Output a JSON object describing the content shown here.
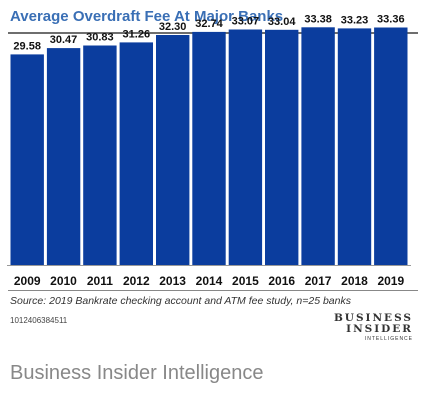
{
  "chart_data": {
    "type": "bar",
    "title": "Average Overdraft Fee At Major Banks",
    "categories": [
      "2009",
      "2010",
      "2011",
      "2012",
      "2013",
      "2014",
      "2015",
      "2016",
      "2017",
      "2018",
      "2019"
    ],
    "values": [
      29.58,
      30.47,
      30.83,
      31.26,
      32.3,
      32.74,
      33.07,
      33.04,
      33.38,
      33.23,
      33.36
    ],
    "value_labels": [
      "29.58",
      "30.47",
      "30.83",
      "31.26",
      "32.30",
      "32.74",
      "33.07",
      "33.04",
      "33.38",
      "33.23",
      "33.36"
    ],
    "xlabel": "",
    "ylabel": "",
    "bar_color": "#0b3d9e",
    "grid": false,
    "legend": "none"
  },
  "source": "Source: 2019 Bankrate checking account and ATM fee study, n=25 banks",
  "code": "1012406384511",
  "logo": {
    "line1": "BUSINESS",
    "line2": "INSIDER",
    "line3": "INTELLIGENCE"
  },
  "brand": "Business Insider Intelligence",
  "colors": {
    "title": "#3a6fb5",
    "bar": "#0b3d9e",
    "brand": "#888888"
  }
}
